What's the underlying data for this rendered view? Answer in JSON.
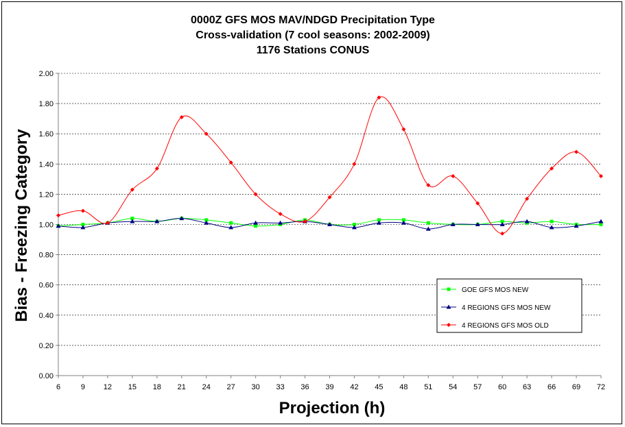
{
  "chart_data": {
    "type": "line",
    "title": [
      "0000Z GFS MOS MAV/NDGD Precipitation Type",
      "Cross-validation (7 cool seasons: 2002-2009)",
      "1176 Stations CONUS"
    ],
    "xlabel": "Projection (h)",
    "ylabel": "Bias - Freezing Category",
    "x": [
      6,
      9,
      12,
      15,
      18,
      21,
      24,
      27,
      30,
      33,
      36,
      39,
      42,
      45,
      48,
      51,
      54,
      57,
      60,
      63,
      66,
      69,
      72
    ],
    "x_tick_labels": [
      "6",
      "9",
      "12",
      "15",
      "18",
      "21",
      "24",
      "27",
      "30",
      "33",
      "36",
      "39",
      "42",
      "45",
      "48",
      "51",
      "54",
      "57",
      "60",
      "63",
      "66",
      "69",
      "72"
    ],
    "y_tick_labels": [
      "0.00",
      "0.20",
      "0.40",
      "0.60",
      "0.80",
      "1.00",
      "1.20",
      "1.40",
      "1.60",
      "1.80",
      "2.00"
    ],
    "y_ticks": [
      0,
      0.2,
      0.4,
      0.6,
      0.8,
      1.0,
      1.2,
      1.4,
      1.6,
      1.8,
      2.0
    ],
    "ylim": [
      0,
      2
    ],
    "xlim": [
      6,
      72
    ],
    "grid": "horizontal dashed",
    "legend_position": "bottom-right",
    "series": [
      {
        "name": "GOE GFS MOS NEW",
        "color": "#00ff00",
        "marker": "square",
        "values": [
          0.99,
          1.0,
          1.01,
          1.04,
          1.02,
          1.04,
          1.03,
          1.01,
          0.99,
          1.0,
          1.03,
          1.0,
          1.0,
          1.03,
          1.03,
          1.01,
          1.0,
          1.0,
          1.02,
          1.01,
          1.02,
          1.0,
          1.0
        ]
      },
      {
        "name": "4 REGIONS GFS MOS NEW",
        "color": "#000080",
        "marker": "triangle",
        "values": [
          0.99,
          0.98,
          1.01,
          1.02,
          1.02,
          1.04,
          1.01,
          0.98,
          1.01,
          1.01,
          1.02,
          1.0,
          0.98,
          1.01,
          1.01,
          0.97,
          1.0,
          1.0,
          1.0,
          1.02,
          0.98,
          0.99,
          1.02
        ]
      },
      {
        "name": "4 REGIONS GFS MOS OLD",
        "color": "#ff0000",
        "marker": "diamond",
        "values": [
          1.06,
          1.09,
          1.01,
          1.23,
          1.37,
          1.71,
          1.6,
          1.41,
          1.2,
          1.07,
          1.02,
          1.18,
          1.4,
          1.84,
          1.63,
          1.26,
          1.32,
          1.14,
          0.94,
          1.17,
          1.37,
          1.48,
          1.32
        ]
      }
    ]
  }
}
